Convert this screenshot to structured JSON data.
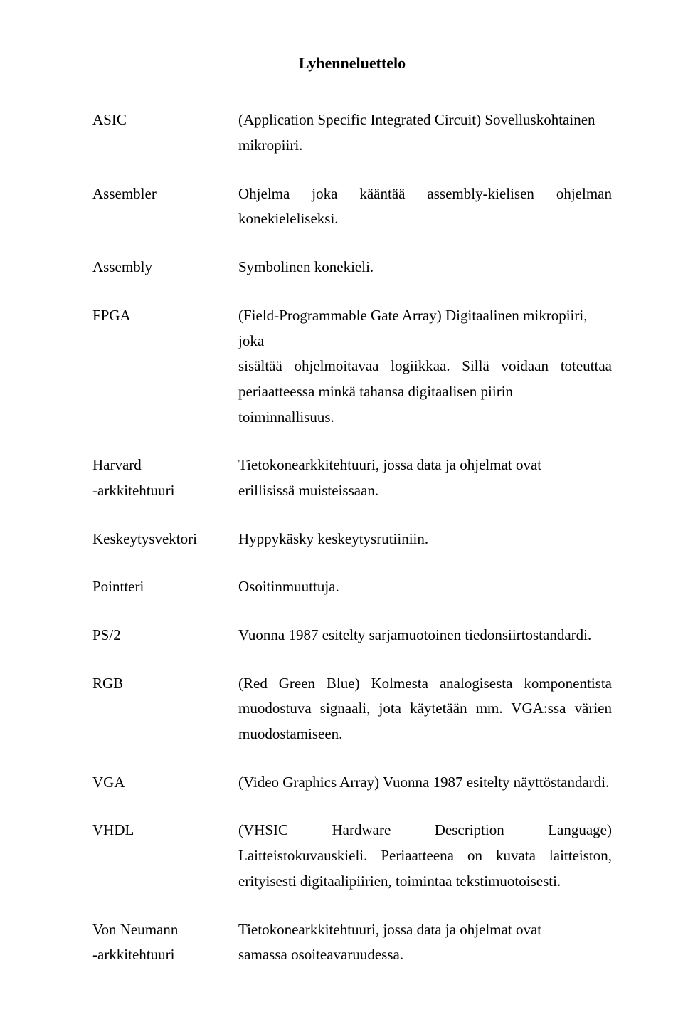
{
  "title": "Lyhenneluettelo",
  "entries": {
    "asic": {
      "term": "ASIC",
      "line1": "(Application Specific Integrated Circuit) Sovelluskohtainen",
      "line2": "mikropiiri."
    },
    "assembler": {
      "term": "Assembler",
      "line1": "Ohjelma joka kääntää assembly-kielisen ohjelman",
      "line2": "konekieleliseksi."
    },
    "assembly": {
      "term": "Assembly",
      "def": "Symbolinen konekieli."
    },
    "fpga": {
      "term": "FPGA",
      "line1": "(Field-Programmable Gate Array) Digitaalinen mikropiiri, joka",
      "line2": "sisältää ohjelmoitavaa logiikkaa. Sillä voidaan toteuttaa",
      "line3": "periaatteessa minkä tahansa digitaalisen piirin toiminnallisuus."
    },
    "harvard": {
      "term1": "Harvard",
      "term2": "-arkkitehtuuri",
      "line1": "Tietokonearkkitehtuuri, jossa data ja ohjelmat ovat",
      "line2": "erillisissä muisteissaan."
    },
    "keskeytysvektori": {
      "term": "Keskeytysvektori",
      "def": "Hyppykäsky keskeytysrutiiniin."
    },
    "pointteri": {
      "term": "Pointteri",
      "def": "Osoitinmuuttuja."
    },
    "ps2": {
      "term": "PS/2",
      "def": "Vuonna 1987 esitelty sarjamuotoinen tiedonsiirtostandardi."
    },
    "rgb": {
      "term": "RGB",
      "line1": "(Red Green Blue) Kolmesta analogisesta komponentista",
      "line2": "muodostuva signaali, jota käytetään mm. VGA:ssa värien",
      "line3": "muodostamiseen."
    },
    "vga": {
      "term": "VGA",
      "def": "(Video Graphics Array) Vuonna 1987 esitelty näyttöstandardi."
    },
    "vhdl": {
      "term": "VHDL",
      "line1": "(VHSIC Hardware Description Language)",
      "line2": "Laitteistokuvauskieli. Periaatteena on kuvata laitteiston,",
      "line3": "erityisesti digitaalipiirien, toimintaa tekstimuotoisesti."
    },
    "vonneumann": {
      "term1": "Von Neumann",
      "term2": "-arkkitehtuuri",
      "line1": "Tietokonearkkitehtuuri, jossa data ja ohjelmat ovat",
      "line2": "samassa osoiteavaruudessa."
    }
  }
}
